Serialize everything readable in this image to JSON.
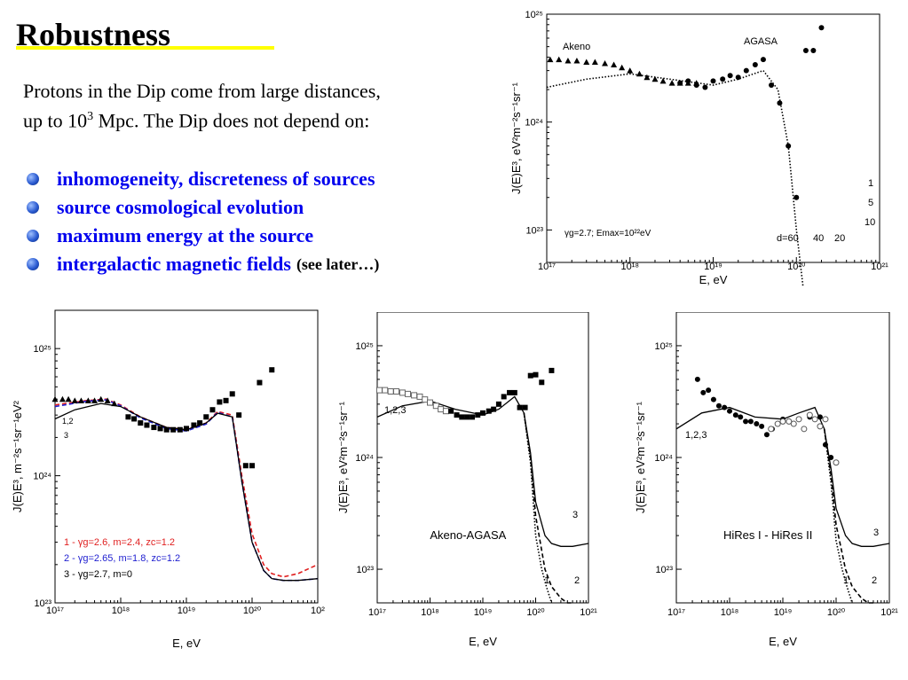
{
  "slide": {
    "title": "Robustness",
    "intro_line1": "Protons in the Dip come from large distances,",
    "intro_line2_pre": "up to  10",
    "intro_line2_sup": "3",
    "intro_line2_post": " Mpc. The Dip does not depend on:",
    "bullets": [
      "inhomogeneity, discreteness of sources",
      "source cosmological evolution",
      "maximum energy at the source",
      "intergalactic magnetic fields"
    ],
    "bullet_note": "(see later…)",
    "colors": {
      "bullet_text": "#0000ee",
      "title_underline": "#ffff00"
    }
  },
  "chart_data": [
    {
      "id": "top-right",
      "type": "line",
      "ylabel": "J(E)E³, eV²m⁻²s⁻¹sr⁻¹",
      "xlabel": "E, eV",
      "x_scale": "log",
      "y_scale": "log",
      "xlim": [
        1e+17,
        1e+21
      ],
      "ylim": [
        5e+22,
        1e+25
      ],
      "x_ticks": [
        "10¹⁷",
        "10¹⁸",
        "10¹⁹",
        "10²⁰",
        "10²¹"
      ],
      "y_ticks": [
        "10²³",
        "10²⁴",
        "10²⁵"
      ],
      "annotations": [
        "Akeno",
        "AGASA",
        "γg=2.7;  Emax=10²²eV",
        "d=60",
        "40",
        "20",
        "1",
        "5",
        "10"
      ],
      "series": [
        {
          "name": "Akeno",
          "marker": "triangle",
          "x": [
            1.1e+17,
            1.4e+17,
            1.8e+17,
            2.3e+17,
            3e+17,
            3.8e+17,
            5e+17,
            6.4e+17,
            8e+17,
            1e+18,
            1.3e+18,
            1.6e+18,
            2e+18,
            2.5e+18,
            3.2e+18,
            4e+18,
            5e+18,
            6.3e+18
          ],
          "y": [
            3.8e+24,
            3.8e+24,
            3.7e+24,
            3.7e+24,
            3.6e+24,
            3.6e+24,
            3.5e+24,
            3.4e+24,
            3.2e+24,
            3e+24,
            2.8e+24,
            2.6e+24,
            2.5e+24,
            2.4e+24,
            2.3e+24,
            2.3e+24,
            2.3e+24,
            2.3e+24
          ]
        },
        {
          "name": "AGASA",
          "marker": "circle",
          "x": [
            4e+18,
            5e+18,
            6.3e+18,
            8e+18,
            1e+19,
            1.3e+19,
            1.6e+19,
            2e+19,
            2.5e+19,
            3.2e+19,
            4e+19,
            5e+19,
            6.3e+19,
            8e+19,
            1e+20,
            1.3e+20,
            1.6e+20,
            2e+20
          ],
          "y": [
            2.3e+24,
            2.4e+24,
            2.2e+24,
            2.1e+24,
            2.4e+24,
            2.5e+24,
            2.7e+24,
            2.6e+24,
            3e+24,
            3.4e+24,
            3.8e+24,
            2.2e+24,
            1.5e+24,
            6e+23,
            2e+23,
            4.6e+24,
            4.6e+24,
            7.5e+24
          ]
        },
        {
          "name": "model d=60",
          "style": "dotted",
          "x": [
            1e+17,
            3e+17,
            1e+18,
            3e+18,
            1e+19,
            2e+19,
            4e+19,
            6e+19,
            8e+19,
            1e+20,
            1.2e+20
          ],
          "y": [
            2.1e+24,
            2.5e+24,
            2.8e+24,
            2.5e+24,
            2.2e+24,
            2.5e+24,
            3e+24,
            2e+24,
            6e+23,
            1e+23,
            3e+22
          ]
        }
      ]
    },
    {
      "id": "bottom-left",
      "type": "line",
      "ylabel": "J(E)E³, m⁻²s⁻¹sr⁻¹eV²",
      "xlabel": "E, eV",
      "x_scale": "log",
      "y_scale": "log",
      "xlim": [
        1e+17,
        1e+21
      ],
      "ylim": [
        1e+23,
        2e+25
      ],
      "x_ticks": [
        "10¹⁷",
        "10¹⁸",
        "10¹⁹",
        "10²⁰",
        "10²"
      ],
      "y_ticks": [
        "10²³",
        "10²⁴",
        "10²⁵"
      ],
      "legend": [
        {
          "text": "1 - γg=2.6, m=2.4, zc=1.2",
          "color": "#e02020"
        },
        {
          "text": "2 - γg=2.65, m=1.8, zc=1.2",
          "color": "#2020d0"
        },
        {
          "text": "3 - γg=2.7, m=0",
          "color": "#000000"
        }
      ],
      "curve_labels": [
        "1,2",
        "3"
      ],
      "series": [
        {
          "name": "1",
          "color": "#e02020",
          "style": "dashed",
          "x": [
            1e+17,
            3e+17,
            6e+17,
            1e+18,
            2e+18,
            5e+18,
            1e+19,
            2e+19,
            3e+19,
            5e+19,
            7e+19,
            1e+20,
            1.5e+20,
            2e+20,
            3e+20,
            5e+20,
            1e+21
          ],
          "y": [
            3.6e+24,
            3.9e+24,
            4e+24,
            3.6e+24,
            2.9e+24,
            2.4e+24,
            2.3e+24,
            2.6e+24,
            3.2e+24,
            3e+24,
            1e+24,
            3.5e+23,
            2e+23,
            1.7e+23,
            1.6e+23,
            1.7e+23,
            2e+23
          ]
        },
        {
          "name": "2",
          "color": "#2020d0",
          "style": "dashed",
          "x": [
            1e+17,
            3e+17,
            6e+17,
            1e+18,
            2e+18,
            5e+18,
            1e+19,
            2e+19,
            3e+19,
            5e+19,
            7e+19,
            1e+20,
            1.5e+20,
            2e+20,
            3e+20,
            5e+20,
            1e+21
          ],
          "y": [
            3.5e+24,
            3.85e+24,
            3.95e+24,
            3.55e+24,
            2.85e+24,
            2.35e+24,
            2.25e+24,
            2.55e+24,
            3.15e+24,
            2.9e+24,
            9e+23,
            3e+23,
            1.8e+23,
            1.55e+23,
            1.5e+23,
            1.5e+23,
            1.55e+23
          ]
        },
        {
          "name": "3",
          "color": "#000000",
          "style": "solid",
          "x": [
            1e+17,
            2e+17,
            5e+17,
            1e+18,
            2e+18,
            5e+18,
            1e+19,
            2e+19,
            3e+19,
            5e+19,
            7e+19,
            1e+20,
            1.5e+20,
            2e+20,
            3e+20,
            5e+20,
            1e+21
          ],
          "y": [
            2.8e+24,
            3.3e+24,
            3.7e+24,
            3.5e+24,
            2.9e+24,
            2.4e+24,
            2.3e+24,
            2.6e+24,
            3.1e+24,
            2.9e+24,
            9e+23,
            3e+23,
            1.8e+23,
            1.55e+23,
            1.5e+23,
            1.5e+23,
            1.55e+23
          ]
        },
        {
          "name": "data triangles",
          "marker": "triangle",
          "x": [
            1e+17,
            1.3e+17,
            1.6e+17,
            2e+17,
            2.5e+17,
            3.2e+17,
            4e+17,
            5e+17,
            6.3e+17,
            8e+17
          ],
          "y": [
            4e+24,
            4e+24,
            4e+24,
            3.9e+24,
            3.9e+24,
            3.9e+24,
            3.9e+24,
            4e+24,
            3.9e+24,
            3.7e+24
          ]
        },
        {
          "name": "data squares",
          "marker": "square",
          "x": [
            1.3e+18,
            1.6e+18,
            2e+18,
            2.5e+18,
            3.2e+18,
            4e+18,
            5e+18,
            6.3e+18,
            8e+18,
            1e+19,
            1.3e+19,
            1.6e+19,
            2e+19,
            2.5e+19,
            3.2e+19,
            4e+19,
            5e+19,
            6.3e+19,
            8e+19,
            1e+20,
            1.3e+20,
            2e+20
          ],
          "y": [
            2.9e+24,
            2.8e+24,
            2.6e+24,
            2.5e+24,
            2.4e+24,
            2.35e+24,
            2.3e+24,
            2.3e+24,
            2.3e+24,
            2.35e+24,
            2.5e+24,
            2.6e+24,
            2.9e+24,
            3.3e+24,
            3.8e+24,
            3.9e+24,
            4.4e+24,
            3e+24,
            1.2e+24,
            1.2e+24,
            5.4e+24,
            6.8e+24
          ]
        }
      ]
    },
    {
      "id": "bottom-middle",
      "type": "line",
      "title": "Akeno-AGASA",
      "ylabel": "J(E)E³, eV²m⁻²s⁻¹sr⁻¹",
      "xlabel": "E, eV",
      "x_scale": "log",
      "y_scale": "log",
      "xlim": [
        1e+17,
        1e+21
      ],
      "ylim": [
        5e+22,
        2e+25
      ],
      "x_ticks": [
        "10¹⁷",
        "10¹⁸",
        "10¹⁹",
        "10²⁰",
        "10²¹"
      ],
      "y_ticks": [
        "10²³",
        "10²⁴",
        "10²⁵"
      ],
      "curve_labels": [
        "1,2,3",
        "3",
        "1",
        "2"
      ],
      "series": [
        {
          "name": "3",
          "style": "solid",
          "x": [
            1e+17,
            3e+17,
            1e+18,
            3e+18,
            1e+19,
            2e+19,
            4e+19,
            6e+19,
            8e+19,
            1e+20,
            1.5e+20,
            2e+20,
            3e+20,
            5e+20,
            1e+21
          ],
          "y": [
            2.3e+24,
            2.9e+24,
            3.2e+24,
            2.7e+24,
            2.4e+24,
            2.7e+24,
            3.5e+24,
            2.5e+24,
            1.1e+24,
            4e+23,
            2e+23,
            1.7e+23,
            1.6e+23,
            1.6e+23,
            1.7e+23
          ]
        },
        {
          "name": "2",
          "style": "dashed",
          "x": [
            6e+19,
            8e+19,
            1e+20,
            1.5e+20,
            2e+20,
            3e+20,
            4e+20,
            5e+20
          ],
          "y": [
            2.5e+24,
            1e+24,
            3e+23,
            1e+23,
            7e+22,
            5.5e+22,
            5e+22,
            5e+22
          ]
        },
        {
          "name": "1",
          "style": "dotted",
          "x": [
            6e+19,
            8e+19,
            1e+20,
            1.3e+20,
            1.6e+20,
            2e+20
          ],
          "y": [
            2.5e+24,
            9e+23,
            2e+23,
            1e+23,
            7e+22,
            5e+22
          ]
        },
        {
          "name": "Akeno",
          "marker": "open-square",
          "x": [
            1.1e+17,
            1.4e+17,
            1.8e+17,
            2.3e+17,
            3e+17,
            3.8e+17,
            5e+17,
            6.4e+17,
            8e+17,
            1e+18,
            1.3e+18,
            1.6e+18,
            2e+18
          ],
          "y": [
            4e+24,
            4e+24,
            3.9e+24,
            3.9e+24,
            3.8e+24,
            3.7e+24,
            3.6e+24,
            3.5e+24,
            3.3e+24,
            3.1e+24,
            2.9e+24,
            2.7e+24,
            2.6e+24
          ]
        },
        {
          "name": "AGASA",
          "marker": "square",
          "x": [
            2.5e+18,
            3.2e+18,
            4e+18,
            5e+18,
            6.3e+18,
            8e+18,
            1e+19,
            1.3e+19,
            1.6e+19,
            2e+19,
            2.5e+19,
            3.2e+19,
            4e+19,
            5e+19,
            6.3e+19,
            8e+19,
            1e+20,
            1.3e+20,
            2e+20
          ],
          "y": [
            2.6e+24,
            2.4e+24,
            2.3e+24,
            2.3e+24,
            2.3e+24,
            2.4e+24,
            2.5e+24,
            2.6e+24,
            2.7e+24,
            3e+24,
            3.5e+24,
            3.8e+24,
            3.8e+24,
            2.8e+24,
            2.8e+24,
            5.4e+24,
            5.5e+24,
            4.7e+24,
            6e+24
          ]
        }
      ]
    },
    {
      "id": "bottom-right",
      "type": "line",
      "title": "HiRes I - HiRes II",
      "ylabel": "J(E)E³, eV²m⁻²s⁻¹sr⁻¹",
      "xlabel": "E, eV",
      "x_scale": "log",
      "y_scale": "log",
      "xlim": [
        1e+17,
        1e+21
      ],
      "ylim": [
        5e+22,
        2e+25
      ],
      "x_ticks": [
        "10¹⁷",
        "10¹⁸",
        "10¹⁹",
        "10²⁰",
        "10²¹"
      ],
      "y_ticks": [
        "10²³",
        "10²⁴",
        "10²⁵"
      ],
      "curve_labels": [
        "1,2,3",
        "3",
        "1",
        "2"
      ],
      "series": [
        {
          "name": "3",
          "style": "solid",
          "x": [
            1e+17,
            3e+17,
            1e+18,
            3e+18,
            1e+19,
            2e+19,
            4e+19,
            6e+19,
            8e+19,
            1e+20,
            1.5e+20,
            2e+20,
            3e+20,
            5e+20,
            1e+21
          ],
          "y": [
            1.8e+24,
            2.5e+24,
            2.8e+24,
            2.3e+24,
            2.2e+24,
            2.5e+24,
            2.8e+24,
            1.8e+24,
            8e+23,
            3.5e+23,
            2e+23,
            1.7e+23,
            1.6e+23,
            1.6e+23,
            1.7e+23
          ]
        },
        {
          "name": "2",
          "style": "dashed",
          "x": [
            6e+19,
            8e+19,
            1e+20,
            1.5e+20,
            2e+20,
            3e+20,
            4e+20,
            5e+20
          ],
          "y": [
            1.8e+24,
            7e+23,
            2.5e+23,
            1e+23,
            7e+22,
            5.5e+22,
            5e+22,
            5e+22
          ]
        },
        {
          "name": "1",
          "style": "dotted",
          "x": [
            6e+19,
            8e+19,
            1e+20,
            1.3e+20,
            1.6e+20,
            2e+20
          ],
          "y": [
            1.8e+24,
            6e+23,
            1.8e+23,
            1e+23,
            7e+22,
            5e+22
          ]
        },
        {
          "name": "HiRes I",
          "marker": "circle",
          "x": [
            2.5e+17,
            3.2e+17,
            4e+17,
            5e+17,
            6.3e+17,
            8e+17,
            1e+18,
            1.3e+18,
            1.6e+18,
            2e+18,
            2.5e+18,
            3.2e+18,
            4e+18,
            5e+18,
            6.3e+18,
            8e+18,
            1e+19,
            1.3e+19,
            2e+19,
            3.2e+19,
            5e+19,
            6.3e+19,
            8e+19
          ],
          "y": [
            5e+24,
            3.8e+24,
            4e+24,
            3.3e+24,
            2.9e+24,
            2.8e+24,
            2.6e+24,
            2.4e+24,
            2.3e+24,
            2.1e+24,
            2.1e+24,
            2e+24,
            1.9e+24,
            1.6e+24,
            1.8e+24,
            2e+24,
            2.2e+24,
            2.1e+24,
            2.2e+24,
            2.3e+24,
            2.3e+24,
            1.3e+24,
            1e+24
          ]
        },
        {
          "name": "HiRes II",
          "marker": "open-circle",
          "x": [
            6e+18,
            8e+18,
            1e+19,
            1.3e+19,
            1.6e+19,
            2e+19,
            2.5e+19,
            3.2e+19,
            4e+19,
            5e+19,
            6.3e+19,
            1e+20
          ],
          "y": [
            1.8e+24,
            2e+24,
            2.1e+24,
            2.1e+24,
            2e+24,
            2.2e+24,
            1.8e+24,
            2.4e+24,
            2.2e+24,
            1.9e+24,
            2.2e+24,
            9e+23
          ]
        }
      ]
    }
  ]
}
